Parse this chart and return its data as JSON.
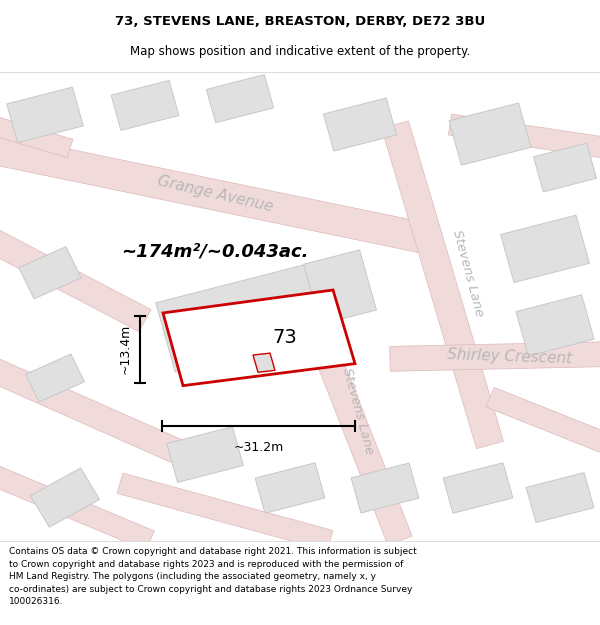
{
  "title": "73, STEVENS LANE, BREASTON, DERBY, DE72 3BU",
  "subtitle": "Map shows position and indicative extent of the property.",
  "footer": "Contains OS data © Crown copyright and database right 2021. This information is subject\nto Crown copyright and database rights 2023 and is reproduced with the permission of\nHM Land Registry. The polygons (including the associated geometry, namely x, y\nco-ordinates) are subject to Crown copyright and database rights 2023 Ordnance Survey\n100026316.",
  "map_bg": "#f2f2f2",
  "road_fill": "#f0dada",
  "road_edge": "#e8c0c0",
  "building_fill": "#e0e0e0",
  "building_edge": "#c8c8c8",
  "highlight_color": "#cc0000",
  "highlight_fill": "#ffffff",
  "area_text": "~174m²/~0.043ac.",
  "width_label": "~31.2m",
  "height_label": "~13.4m",
  "property_number": "73",
  "shirley_crescent": "Shirley Crescent",
  "grange_avenue": "Grange Avenue",
  "stevens_lane_top": "Stevens Lane",
  "stevens_lane_mid": "Stevens Lane"
}
